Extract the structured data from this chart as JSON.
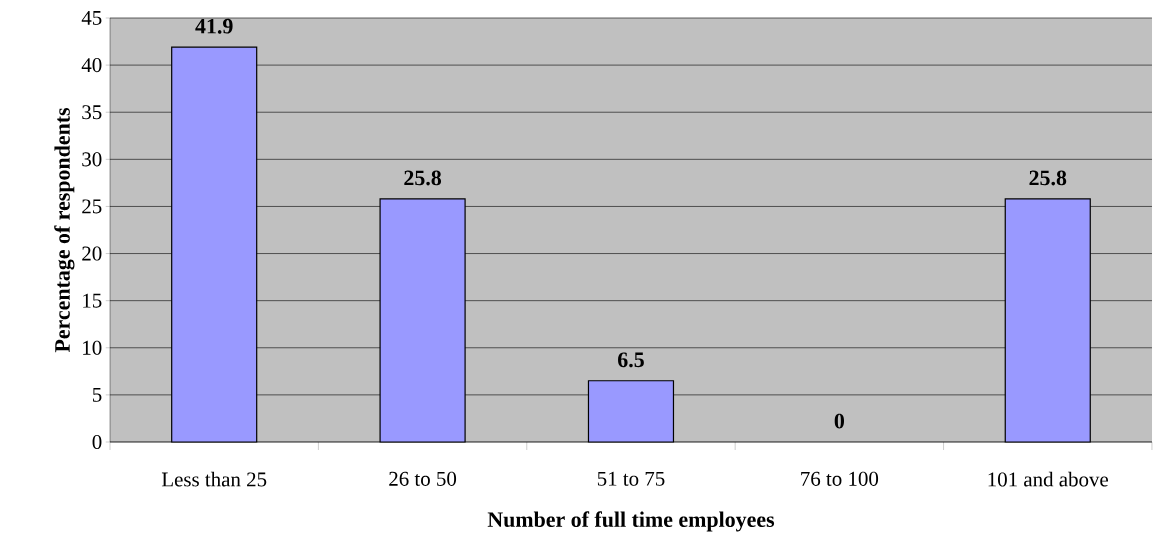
{
  "chart_data": {
    "type": "bar",
    "xlabel": "Number of full time employees",
    "ylabel": "Percentage of respondents",
    "categories": [
      "Less than 25",
      "26 to 50",
      "51 to 75",
      "76 to 100",
      "101 and above"
    ],
    "values": [
      41.9,
      25.8,
      6.5,
      0,
      25.8
    ],
    "color": "#9999ff",
    "ylim": [
      0,
      45
    ],
    "yticks": [
      0,
      5,
      10,
      15,
      20,
      25,
      30,
      35,
      40,
      45
    ],
    "grid": "y",
    "data_labels": true
  }
}
